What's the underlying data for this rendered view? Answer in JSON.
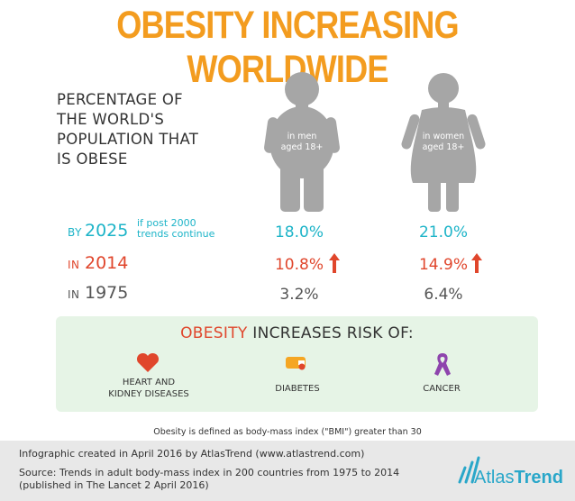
{
  "title": "OBESITY INCREASING WORLDWIDE",
  "heading": "PERCENTAGE OF\nTHE WORLD'S\nPOPULATION THAT\nIS OBESE",
  "figures": {
    "men_label": "in men\naged 18+",
    "women_label": "in women\naged 18+"
  },
  "rows": {
    "r2025": {
      "prefix": "BY",
      "year": "2025",
      "note": "if post 2000\ntrends continue",
      "men": "18.0%",
      "women": "21.0%"
    },
    "r2014": {
      "prefix": "IN",
      "year": "2014",
      "men": "10.8%",
      "women": "14.9%"
    },
    "r1975": {
      "prefix": "IN",
      "year": "1975",
      "men": "3.2%",
      "women": "6.4%"
    }
  },
  "risk": {
    "title_highlight": "OBESITY",
    "title_rest": " INCREASES RISK OF:",
    "items": {
      "heart": "HEART AND\nKIDNEY DISEASES",
      "diabetes": "DIABETES",
      "cancer": "CANCER"
    }
  },
  "bmi_note": "Obesity is defined as body-mass index (\"BMI\") greater than 30",
  "footer": {
    "credit": "Infographic created in April 2016 by AtlasTrend (www.atlastrend.com)",
    "source_line1": "Source: Trends in adult body-mass index in 200 countries from 1975 to 2014",
    "source_line2": "(published in The Lancet 2 April 2016)",
    "logo_part1": "Atlas",
    "logo_part2": "Trend"
  },
  "colors": {
    "title": "#f39c1f",
    "cyan": "#1db4c8",
    "red": "#e0462c",
    "figure": "#a6a6a6",
    "risk_bg": "#e6f4e6",
    "logo": "#2aa7c9"
  },
  "icons": [
    "heart-icon",
    "syringe-icon",
    "awareness-ribbon-icon",
    "atlastrend-logo-icon"
  ]
}
